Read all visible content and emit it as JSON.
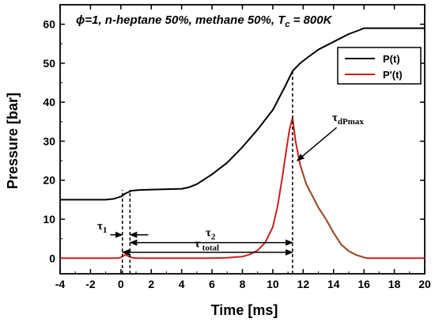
{
  "chart_data": {
    "type": "line",
    "title": "ϕ=1, n-heptane 50%, methane 50%, T",
    "title_sub": "c",
    "title_suffix": " = 800K",
    "xlabel": "Time [ms]",
    "ylabel": "Pressure  [bar]",
    "xlim": [
      -4,
      20
    ],
    "ylim": [
      -4,
      65
    ],
    "xticks": [
      -4,
      -2,
      0,
      2,
      4,
      6,
      8,
      10,
      12,
      14,
      16,
      18,
      20
    ],
    "yticks": [
      0,
      10,
      20,
      30,
      40,
      50,
      60
    ],
    "legend_position": "top-right",
    "series": [
      {
        "name": "P(t)",
        "color": "#000000",
        "x": [
          -4,
          -1,
          -0.5,
          0,
          0.3,
          0.7,
          1.2,
          2,
          3,
          4,
          4.5,
          5,
          6,
          7,
          8,
          9,
          10,
          10.8,
          11.3,
          11.8,
          12.3,
          13,
          14,
          15,
          15.7,
          16,
          17,
          18,
          19,
          20
        ],
        "y": [
          15,
          15,
          15.2,
          15.8,
          16.6,
          17.3,
          17.5,
          17.6,
          17.7,
          17.8,
          18.2,
          19,
          21.5,
          24.5,
          28.5,
          33,
          38,
          44,
          48,
          50,
          51.5,
          53.5,
          55.5,
          57.5,
          58.5,
          59,
          59,
          59,
          59,
          59
        ]
      },
      {
        "name": "P'(t)",
        "color": "#cc1f1f",
        "x": [
          -4,
          -0.2,
          0,
          0.3,
          0.6,
          0.9,
          1.5,
          4,
          6,
          7,
          8,
          8.5,
          9,
          9.5,
          10,
          10.3,
          10.6,
          10.9,
          11.1,
          11.3,
          11.5,
          11.8,
          12.2,
          12.6,
          13,
          13.5,
          14,
          14.5,
          15,
          15.5,
          16,
          16.2,
          17,
          18,
          20
        ],
        "y": [
          0,
          0,
          0.2,
          0.9,
          0.3,
          0,
          0,
          0,
          0,
          0.1,
          0.4,
          1,
          2,
          4,
          8,
          13,
          20,
          28,
          33,
          36,
          30,
          24,
          19,
          16,
          13,
          10,
          6.5,
          3.5,
          1.8,
          0.8,
          0.2,
          0,
          0,
          0,
          0
        ]
      }
    ],
    "vlines": [
      0.1,
      0.6,
      11.3
    ],
    "annotations": {
      "tau1": {
        "text": "τ",
        "sub": "1",
        "arrow_x": [
          -0.7,
          0.1
        ],
        "y": 6
      },
      "tau_inner": {
        "arrow_x": [
          0.6,
          1.8
        ],
        "y": 6
      },
      "tau2": {
        "text": "τ",
        "sub": "2",
        "arrow_x": [
          0.6,
          11.3
        ],
        "y": 4
      },
      "tau_total": {
        "text": "τ",
        "sub": " total",
        "arrow_x": [
          0.1,
          11.3
        ],
        "y": 1.5
      },
      "tau_dpmax": {
        "text": "τ",
        "sub": "dPmax",
        "arrow_from": [
          14.2,
          33.5
        ],
        "arrow_to": [
          11.6,
          25
        ]
      }
    }
  }
}
